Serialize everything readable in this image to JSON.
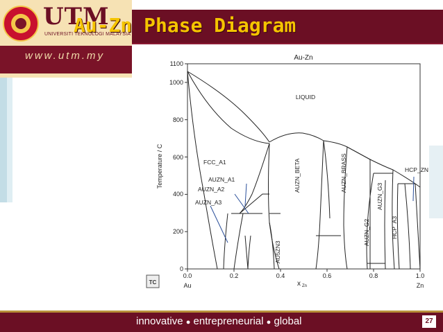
{
  "slide": {
    "title": "Au-Zn Phase Diagram",
    "logo_wordmark": "UTM",
    "logo_subtitle": "UNIVERSITI TEKNOLOGI MALAYSIA",
    "url": "www.utm.my",
    "tagline_parts": [
      "innovative",
      "entrepreneurial",
      "global"
    ],
    "tagline_separator": "●",
    "page_number": "27",
    "colors": {
      "maroon": "#6b0f24",
      "title_yellow": "#f5c400",
      "cream": "#f6e2b4"
    }
  },
  "diagram": {
    "figure_title": "Au-Zn",
    "ylabel": "Temperature / C",
    "xlabel": "x",
    "xlabel_sub": "Zn",
    "left_element": "Au",
    "right_element": "Zn",
    "x_ticks": [
      "0.0",
      "0.2",
      "0.4",
      "0.6",
      "0.8",
      "1.0"
    ],
    "y_ticks": [
      "0",
      "200",
      "400",
      "600",
      "800",
      "1000",
      "1100"
    ],
    "phase_labels": {
      "liquid": "LIQUID",
      "fcc_a1": "FCC_A1",
      "auzn_a1": "AUZN_A1",
      "auzn_a2": "AUZN_A2",
      "auzn_a3": "AUZN_A3",
      "au5zn3": "AU5ZN3",
      "auzn_beta": "AUZN_BETA",
      "auzn_brass": "AUZN_BRASS",
      "auzn_g2": "AUZN_G2",
      "auzn_g3": "AUZN_G3",
      "hcp_a3": "HCP_A3",
      "hcp_zn": "HCP_ZN"
    },
    "software_logo_text": "TC"
  }
}
